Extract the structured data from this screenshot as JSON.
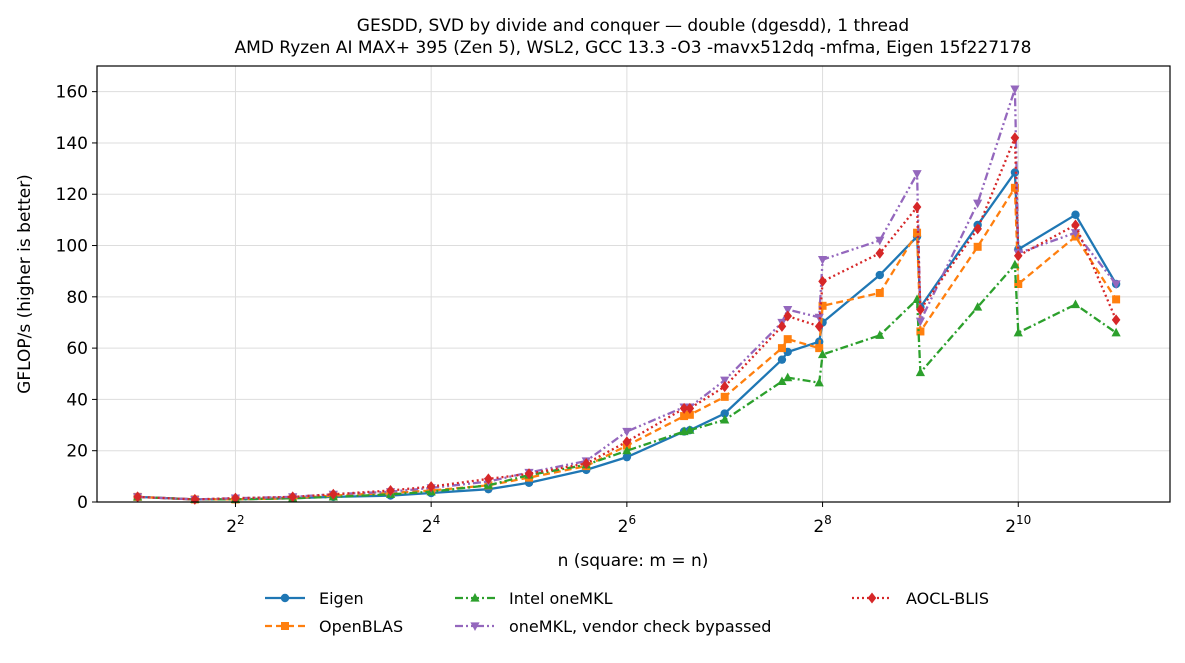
{
  "chart_data": {
    "type": "line",
    "title": "GESDD, SVD by divide and conquer — double (dgesdd), 1 thread",
    "subtitle": "AMD Ryzen AI MAX+ 395 (Zen 5), WSL2, GCC 13.3 -O3 -mavx512dq -mfma, Eigen 15f227178",
    "xlabel": "n (square: m = n)",
    "ylabel": "GFLOP/s (higher is better)",
    "xscale": "log2",
    "xlim": [
      1.5,
      3000
    ],
    "ylim": [
      0,
      170
    ],
    "xticks": [
      {
        "value": 4,
        "base": "2",
        "exp": "2"
      },
      {
        "value": 16,
        "base": "2",
        "exp": "4"
      },
      {
        "value": 64,
        "base": "2",
        "exp": "6"
      },
      {
        "value": 256,
        "base": "2",
        "exp": "8"
      },
      {
        "value": 1024,
        "base": "2",
        "exp": "10"
      }
    ],
    "yticks": [
      0,
      20,
      40,
      60,
      80,
      100,
      120,
      140,
      160
    ],
    "grid": true,
    "legend": "bottom, outside",
    "x": [
      2,
      3,
      4,
      6,
      8,
      12,
      16,
      24,
      32,
      48,
      64,
      96,
      100,
      128,
      192,
      200,
      250,
      256,
      384,
      500,
      512,
      768,
      1000,
      1024,
      1536,
      2048
    ],
    "series": [
      {
        "name": "Eigen",
        "color": "#1f77b4",
        "marker": "circle",
        "dash": "solid",
        "values": [
          2,
          1,
          1,
          1.5,
          2,
          2.5,
          3.5,
          5,
          7.5,
          12.5,
          17.5,
          27.5,
          28,
          34.5,
          55.5,
          58.5,
          62.5,
          70,
          88.5,
          103.5,
          76,
          108,
          128.5,
          98.5,
          112,
          85
        ]
      },
      {
        "name": "OpenBLAS",
        "color": "#ff7f0e",
        "marker": "square",
        "dash": "dashed",
        "values": [
          2,
          1,
          1,
          1.5,
          2.5,
          3.5,
          4.5,
          6.5,
          9.5,
          14,
          22,
          33.5,
          34,
          41,
          60,
          63.5,
          60,
          76.5,
          81.5,
          105,
          66.5,
          99.5,
          122.5,
          85,
          103.5,
          79
        ]
      },
      {
        "name": "Intel oneMKL",
        "color": "#2ca02c",
        "marker": "triangle-up",
        "dash": "dashdot",
        "values": [
          2,
          1,
          1,
          1.5,
          2,
          3,
          4,
          6.5,
          10.5,
          14.5,
          20,
          27.5,
          28,
          32,
          47,
          48.5,
          46.5,
          57.5,
          65,
          79,
          50.5,
          76,
          92.5,
          66,
          77,
          66
        ]
      },
      {
        "name": "oneMKL, vendor check bypassed",
        "color": "#9467bd",
        "marker": "triangle-down",
        "dash": "dashdotdot",
        "values": [
          2,
          1,
          1.5,
          2,
          3,
          4,
          5.5,
          8,
          11.5,
          16,
          27.5,
          37,
          37,
          47.5,
          70,
          75,
          72,
          94.5,
          102,
          128,
          70.5,
          116.5,
          161,
          97,
          105,
          85
        ]
      },
      {
        "name": "AOCL-BLIS",
        "color": "#d62728",
        "marker": "diamond",
        "dash": "dotted",
        "values": [
          2,
          1,
          1.5,
          2,
          3,
          4.5,
          6,
          9,
          11,
          15,
          23.5,
          36.5,
          36.5,
          45,
          68.5,
          72.5,
          68.5,
          86,
          97,
          115,
          75,
          106.5,
          142,
          96,
          108,
          71
        ]
      }
    ]
  }
}
